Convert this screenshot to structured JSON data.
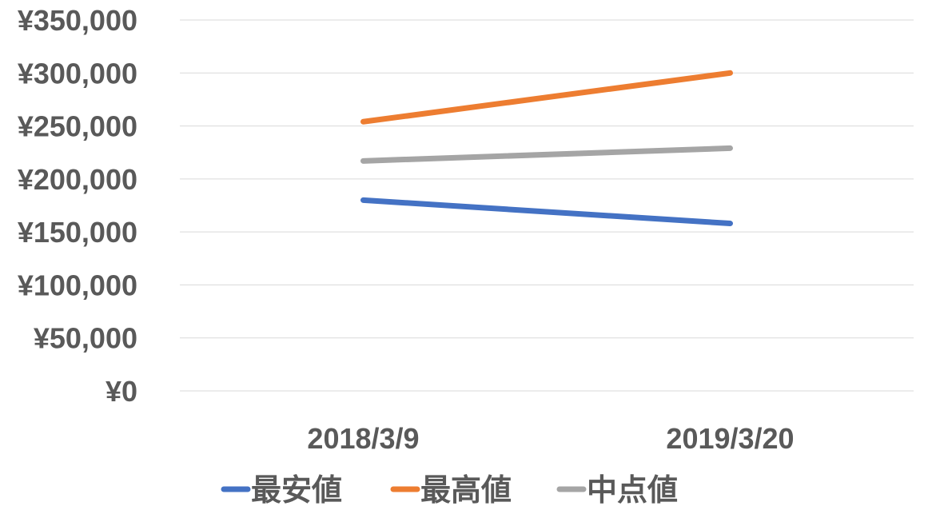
{
  "chart_data": {
    "type": "line",
    "categories": [
      "2018/3/9",
      "2019/3/20"
    ],
    "series": [
      {
        "name": "最安値",
        "values": [
          180000,
          158000
        ],
        "color": "#4472c4"
      },
      {
        "name": "最高値",
        "values": [
          254000,
          300000
        ],
        "color": "#ed7d31"
      },
      {
        "name": "中点値",
        "values": [
          217000,
          229000
        ],
        "color": "#a5a5a5"
      }
    ],
    "ylim": [
      0,
      350000
    ],
    "y_ticks": [
      "¥0",
      "¥50,000",
      "¥100,000",
      "¥150,000",
      "¥200,000",
      "¥250,000",
      "¥300,000",
      "¥350,000"
    ],
    "grid": true,
    "legend_position": "bottom",
    "title": "",
    "xlabel": "",
    "ylabel": ""
  }
}
